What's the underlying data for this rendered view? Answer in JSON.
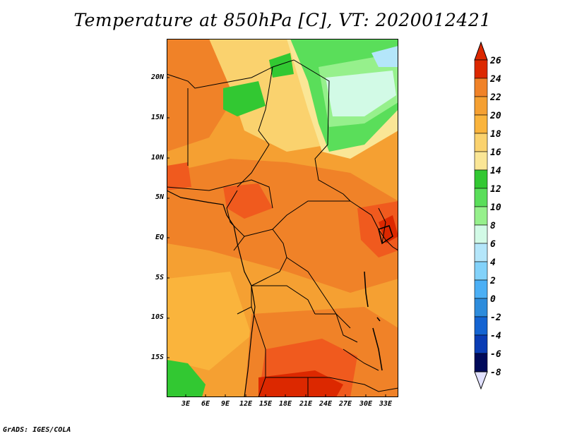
{
  "title": "Temperature at 850hPa [C], VT: 2020012421",
  "credit": "GrADS: IGES/COLA",
  "map": {
    "lat_ticks": [
      "20N",
      "15N",
      "10N",
      "5N",
      "EQ",
      "5S",
      "10S",
      "15S"
    ],
    "lon_ticks": [
      "3E",
      "6E",
      "9E",
      "12E",
      "15E",
      "18E",
      "21E",
      "24E",
      "27E",
      "30E",
      "33E"
    ]
  },
  "colorbar": {
    "labels": [
      "26",
      "24",
      "22",
      "20",
      "18",
      "16",
      "14",
      "12",
      "10",
      "8",
      "6",
      "4",
      "2",
      "0",
      "-2",
      "-4",
      "-6",
      "-8"
    ],
    "colors": [
      "#dc2800",
      "#f05a1e",
      "#f08228",
      "#f5a032",
      "#fab43c",
      "#fad26e",
      "#fae696",
      "#32c832",
      "#5ade5a",
      "#96f08c",
      "#d2fae6",
      "#b4e6fa",
      "#82d2fa",
      "#4baff5",
      "#2d8cdc",
      "#1464d2",
      "#0a3cb4",
      "#000a5a"
    ],
    "top_cap_color": "#dc2800",
    "bottom_cap_color": "#e1e1ff"
  }
}
